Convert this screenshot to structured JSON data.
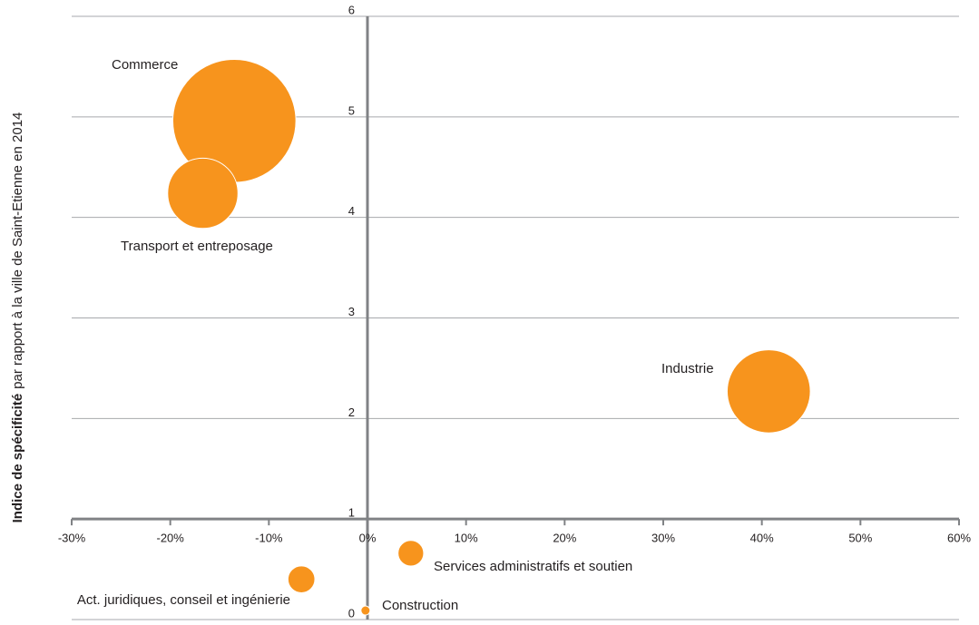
{
  "chart_data": {
    "type": "bubble",
    "y_label_bold": "Indice de spécificité",
    "y_label": "par rapport à la ville de Saint-Etienne en 2014",
    "labels": [
      "Commerce",
      "Transport et entreposage",
      "Industrie",
      "Services administratifs et soutien",
      "Act. juridiques, conseil et ingénierie",
      "Construction"
    ],
    "x": [
      -13.5,
      -16.7,
      40.7,
      4.4,
      -6.7,
      -0.2
    ],
    "y": [
      4.96,
      4.24,
      2.27,
      0.66,
      0.4,
      0.09
    ],
    "sizes": [
      46,
      15,
      21,
      2,
      2.2,
      0.25
    ],
    "color": "#f7941d",
    "xlim": [
      -30,
      60
    ],
    "xticks": [
      {
        "value": -30,
        "label": "-30%"
      },
      {
        "value": -20,
        "label": "-20%"
      },
      {
        "value": -10,
        "label": "-10%"
      },
      {
        "value": 0,
        "label": "0%"
      },
      {
        "value": 10,
        "label": "10%"
      },
      {
        "value": 20,
        "label": "20%"
      },
      {
        "value": 30,
        "label": "30%"
      },
      {
        "value": 40,
        "label": "40%"
      },
      {
        "value": 50,
        "label": "50%"
      },
      {
        "value": 60,
        "label": "60%"
      }
    ],
    "ylim": [
      0,
      6
    ],
    "yticks": [
      0,
      1,
      2,
      3,
      4,
      5,
      6
    ],
    "grid": true
  }
}
